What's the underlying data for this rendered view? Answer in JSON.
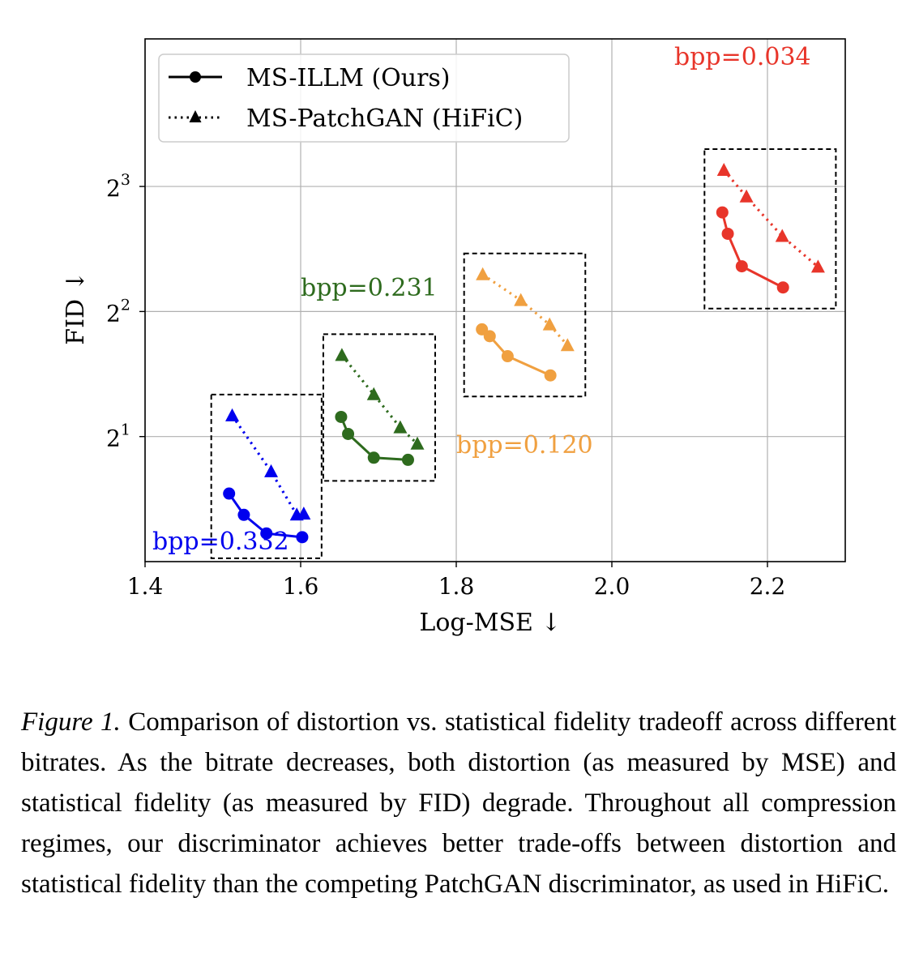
{
  "chart_data": {
    "type": "scatter",
    "xlabel": "Log-MSE ↓",
    "ylabel": "FID ↓",
    "xlim": [
      1.4,
      2.3
    ],
    "ylim_log2": [
      0,
      4.18
    ],
    "xticks": [
      1.4,
      1.6,
      1.8,
      2.0,
      2.2
    ],
    "xtick_labels": [
      "1.4",
      "1.6",
      "1.8",
      "2.0",
      "2.2"
    ],
    "yticks_log2": [
      1,
      2,
      3
    ],
    "ytick_base": "2",
    "ytick_exponents": [
      "1",
      "2",
      "3"
    ],
    "grid": true,
    "legend_placement": "upper-left",
    "series": [
      {
        "name": "MS-ILLM (Ours)",
        "style": "solid",
        "marker": "circle"
      },
      {
        "name": "MS-PatchGAN (HiFiC)",
        "style": "dotted",
        "marker": "triangle"
      }
    ],
    "groups": [
      {
        "label": "bpp=0.332",
        "color": "#0000ee",
        "illm": [
          [
            1.508,
            1.458
          ],
          [
            1.527,
            1.296
          ],
          [
            1.556,
            1.169
          ],
          [
            1.602,
            1.145
          ]
        ],
        "patchgan": [
          [
            1.512,
            2.246
          ],
          [
            1.562,
            1.647
          ],
          [
            1.595,
            1.296
          ],
          [
            1.604,
            1.303
          ]
        ]
      },
      {
        "label": "bpp=0.231",
        "color": "#2e6b1e",
        "illm": [
          [
            1.652,
            2.23
          ],
          [
            1.661,
            2.029
          ],
          [
            1.694,
            1.779
          ],
          [
            1.738,
            1.758
          ]
        ],
        "patchgan": [
          [
            1.653,
            3.139
          ],
          [
            1.694,
            2.525
          ],
          [
            1.728,
            2.102
          ],
          [
            1.75,
            1.92
          ]
        ]
      },
      {
        "label": "bpp=0.120",
        "color": "#f0a040",
        "illm": [
          [
            1.833,
            3.623
          ],
          [
            1.843,
            3.489
          ],
          [
            1.866,
            3.122
          ],
          [
            1.921,
            2.807
          ]
        ],
        "patchgan": [
          [
            1.834,
            4.91
          ],
          [
            1.883,
            4.256
          ],
          [
            1.92,
            3.718
          ],
          [
            1.943,
            3.315
          ]
        ]
      },
      {
        "label": "bpp=0.034",
        "color": "#e8352a",
        "illm": [
          [
            2.142,
            6.929
          ],
          [
            2.149,
            6.154
          ],
          [
            2.167,
            5.139
          ],
          [
            2.22,
            4.57
          ]
        ],
        "patchgan": [
          [
            2.144,
            8.754
          ],
          [
            2.173,
            7.556
          ],
          [
            2.219,
            6.072
          ],
          [
            2.265,
            5.122
          ]
        ]
      }
    ]
  },
  "caption": {
    "lead": "Figure 1.",
    "text": " Comparison of distortion vs. statistical fidelity tradeoff across different bitrates. As the bitrate decreases, both distortion (as measured by MSE) and statistical fidelity (as measured by FID) degrade. Throughout all compression regimes, our discriminator achieves better trade-offs between distortion and statistical fidelity than the competing PatchGAN discriminator, as used in HiFiC."
  }
}
